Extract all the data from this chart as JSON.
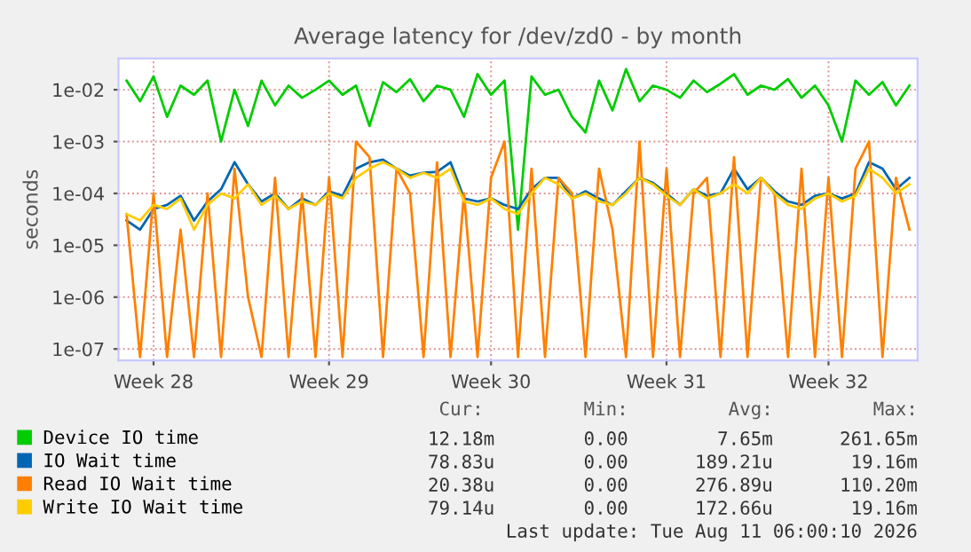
{
  "chart_data": {
    "type": "line",
    "title": "Average latency for /dev/zd0 - by month",
    "ylabel": "seconds",
    "log": "y",
    "grid": true,
    "legend": "bottom",
    "marker": "none",
    "line_style": "solid",
    "categories": [
      null,
      null,
      "Week 28",
      null,
      null,
      null,
      null,
      null,
      null,
      null,
      null,
      null,
      null,
      null,
      null,
      "Week 29",
      null,
      null,
      null,
      null,
      null,
      null,
      null,
      null,
      null,
      null,
      null,
      "Week 30",
      null,
      null,
      null,
      null,
      null,
      null,
      null,
      null,
      null,
      null,
      null,
      null,
      "Week 31",
      null,
      null,
      null,
      null,
      null,
      null,
      null,
      null,
      null,
      null,
      null,
      "Week 32",
      null,
      null,
      null,
      null,
      null,
      null
    ],
    "ylim": [
      6e-08,
      0.04
    ],
    "yticks": [
      {
        "value": 1e-07,
        "label": "1e-07"
      },
      {
        "value": 1e-06,
        "label": "1e-06"
      },
      {
        "value": 1e-05,
        "label": "1e-05"
      },
      {
        "value": 0.0001,
        "label": "1e-04"
      },
      {
        "value": 0.001,
        "label": "1e-03"
      },
      {
        "value": 0.01,
        "label": "1e-02"
      }
    ],
    "series": [
      {
        "name": "Device IO time",
        "color": "#00cc00",
        "values": [
          0.015,
          0.006,
          0.018,
          0.003,
          0.012,
          0.008,
          0.015,
          0.001,
          0.01,
          0.002,
          0.015,
          0.005,
          0.012,
          0.007,
          0.01,
          0.015,
          0.008,
          0.012,
          0.002,
          0.014,
          0.009,
          0.016,
          0.006,
          0.012,
          0.01,
          0.003,
          0.02,
          0.008,
          0.015,
          2e-05,
          0.018,
          0.008,
          0.01,
          0.003,
          0.0015,
          0.015,
          0.004,
          0.025,
          0.006,
          0.012,
          0.01,
          0.007,
          0.015,
          0.009,
          0.013,
          0.02,
          0.008,
          0.012,
          0.01,
          0.016,
          0.007,
          0.012,
          0.005,
          0.001,
          0.015,
          0.008,
          0.014,
          0.005,
          0.012
        ]
      },
      {
        "name": "IO Wait time",
        "color": "#0066b3",
        "values": [
          3e-05,
          2e-05,
          5e-05,
          6e-05,
          9e-05,
          3e-05,
          7e-05,
          0.00012,
          0.0004,
          0.00015,
          7e-05,
          0.0001,
          5e-05,
          8e-05,
          6e-05,
          0.00011,
          9e-05,
          0.0003,
          0.0004,
          0.00045,
          0.0003,
          0.00022,
          0.00025,
          0.00026,
          0.0004,
          8e-05,
          7e-05,
          8e-05,
          6e-05,
          5e-05,
          0.00012,
          0.0002,
          0.0002,
          8e-05,
          0.00011,
          8e-05,
          6e-05,
          0.00011,
          0.0002,
          0.00016,
          0.0001,
          6e-05,
          0.00012,
          9e-05,
          0.0001,
          0.0003,
          0.00012,
          0.0002,
          0.00011,
          7e-05,
          6e-05,
          9e-05,
          0.0001,
          8e-05,
          0.0001,
          0.0004,
          0.0003,
          0.00012,
          0.0002
        ]
      },
      {
        "name": "Read IO Wait time",
        "color": "#ff8000",
        "values": [
          4e-05,
          7e-08,
          0.0001,
          7e-08,
          2e-05,
          7e-08,
          0.0001,
          7e-08,
          0.0003,
          1e-06,
          7e-08,
          0.0002,
          7e-08,
          0.0001,
          7e-08,
          0.0002,
          7e-08,
          0.001,
          0.0005,
          7e-08,
          0.0003,
          0.0001,
          7e-08,
          0.0004,
          7e-08,
          0.0001,
          7e-08,
          0.0002,
          0.001,
          7e-08,
          0.0003,
          7e-08,
          0.0002,
          0.0001,
          7e-08,
          0.0003,
          2e-05,
          7e-08,
          0.001,
          7e-08,
          0.0003,
          7e-08,
          0.0001,
          0.0002,
          7e-08,
          0.0005,
          7e-08,
          0.0002,
          0.0001,
          7e-08,
          0.0003,
          7e-08,
          0.0002,
          7e-08,
          0.0003,
          0.001,
          7e-08,
          0.0002,
          2e-05
        ]
      },
      {
        "name": "Write IO Wait time",
        "color": "#ffcc00",
        "values": [
          4e-05,
          3e-05,
          6e-05,
          5e-05,
          8e-05,
          2e-05,
          6e-05,
          0.0001,
          8e-05,
          0.00015,
          6e-05,
          9e-05,
          5e-05,
          7e-05,
          6e-05,
          0.0001,
          8e-05,
          0.0002,
          0.0003,
          0.0004,
          0.0003,
          0.0002,
          0.00025,
          0.0002,
          0.0003,
          7e-05,
          6e-05,
          8e-05,
          5e-05,
          4e-05,
          0.0001,
          0.0002,
          0.00015,
          8e-05,
          0.0001,
          7e-05,
          6e-05,
          0.0001,
          0.0002,
          0.00015,
          9e-05,
          6e-05,
          0.00012,
          8e-05,
          0.0001,
          0.00015,
          0.0001,
          0.0002,
          0.0001,
          6e-05,
          5e-05,
          8e-05,
          0.0001,
          7e-05,
          9e-05,
          0.0003,
          0.0002,
          0.0001,
          0.00015
        ]
      }
    ],
    "annotations": [
      "Cur:         Min:         Avg:         Max:",
      "12.18m        0.00        7.65m      261.65m",
      "78.83u        0.00      189.21u       19.16m",
      "20.38u        0.00      276.89u      110.20m",
      "79.14u        0.00      172.66u       19.16m",
      "Last update: Tue Aug 11 06:00:10 2026"
    ]
  }
}
